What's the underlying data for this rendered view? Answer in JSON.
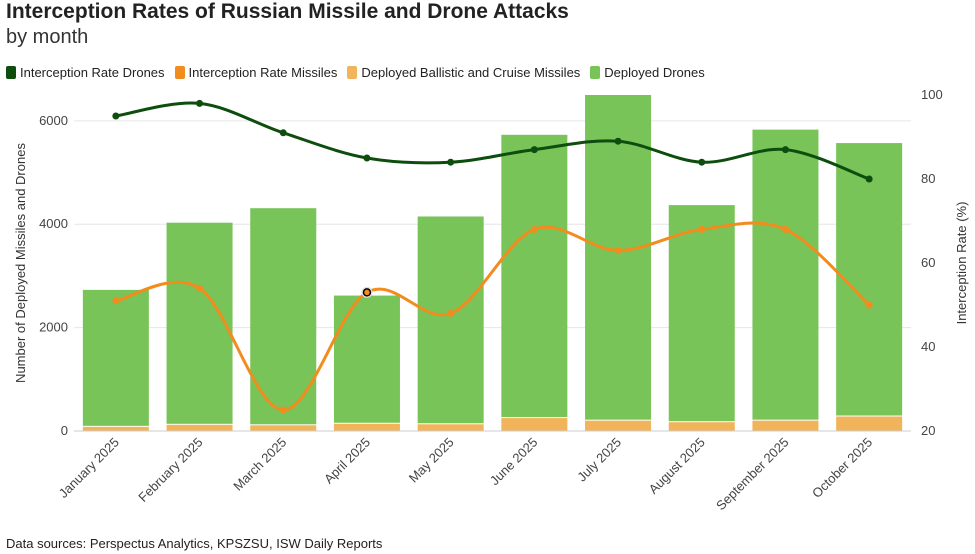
{
  "title": "Interception Rates of Russian Missile and Drone Attacks",
  "subtitle": "by month",
  "source": "Data sources: Perspectus Analytics, KPSZSU, ISW Daily Reports",
  "colors": {
    "drone_rate": "#0d4d0d",
    "missile_rate": "#f28c1e",
    "ballistic": "#f2b45a",
    "drones": "#78c458",
    "grid": "#e6e6e6",
    "axis_text": "#444444"
  },
  "legend": [
    {
      "label": "Interception Rate Drones",
      "color": "#0d4d0d"
    },
    {
      "label": "Interception Rate Missiles",
      "color": "#f28c1e"
    },
    {
      "label": "Deployed Ballistic and Cruise Missiles",
      "color": "#f2b45a"
    },
    {
      "label": "Deployed Drones",
      "color": "#78c458"
    }
  ],
  "chart_data": {
    "type": "bar",
    "title": "Interception Rates of Russian Missile and Drone Attacks",
    "subtitle": "by month",
    "categories": [
      "January 2025",
      "February 2025",
      "March 2025",
      "April 2025",
      "May 2025",
      "June 2025",
      "July 2025",
      "August 2025",
      "September 2025",
      "October 2025"
    ],
    "stacked": true,
    "series": [
      {
        "name": "Deployed Ballistic and Cruise Missiles",
        "type": "bar",
        "axis": "left",
        "values": [
          80,
          120,
          110,
          140,
          130,
          250,
          200,
          170,
          200,
          280
        ]
      },
      {
        "name": "Deployed Drones",
        "type": "bar",
        "axis": "left",
        "values": [
          2650,
          3910,
          4200,
          2480,
          4020,
          5480,
          6300,
          4200,
          5630,
          5290
        ]
      },
      {
        "name": "Interception Rate Drones",
        "type": "line",
        "axis": "right",
        "values": [
          95,
          98,
          91,
          85,
          84,
          87,
          89,
          84,
          87,
          80
        ]
      },
      {
        "name": "Interception Rate Missiles",
        "type": "line",
        "axis": "right",
        "values": [
          51,
          54,
          25,
          53,
          48,
          68,
          63,
          68,
          68,
          50
        ]
      }
    ],
    "ylabel": "Number of Deployed Missiles and Drones",
    "y2label": "Interception Rate (%)",
    "ylim": [
      0,
      6500
    ],
    "y2lim": [
      20,
      100
    ],
    "yticks": [
      0,
      2000,
      4000,
      6000
    ],
    "y2ticks": [
      20,
      40,
      60,
      80,
      100
    ],
    "highlight": {
      "series": "Interception Rate Missiles",
      "category": "April 2025"
    },
    "grid": true,
    "legend_position": "top-left"
  }
}
